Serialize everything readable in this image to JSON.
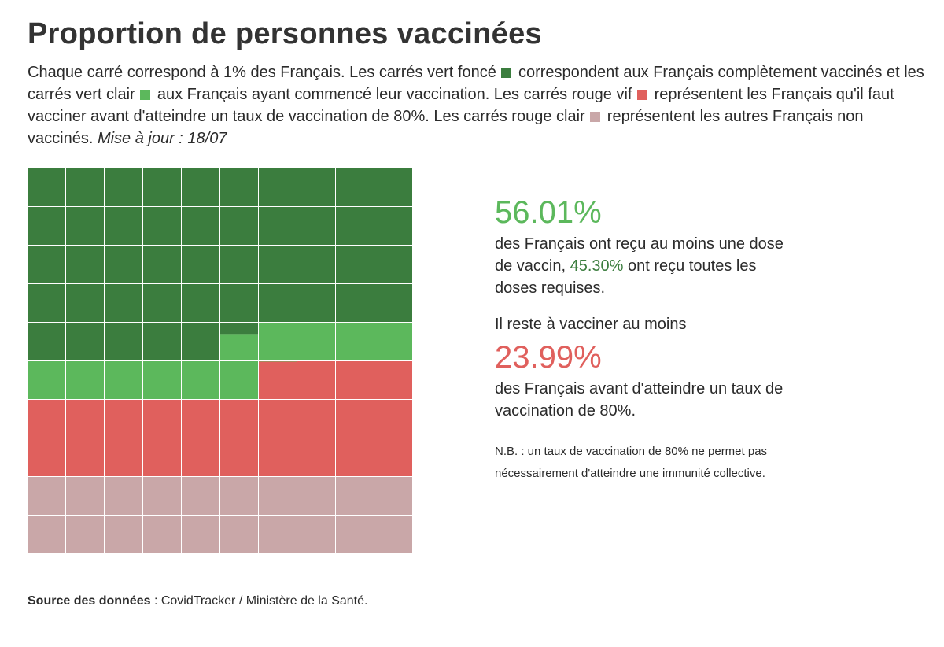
{
  "title": "Proportion de personnes vaccinées",
  "intro": {
    "seg1": "Chaque carré correspond à 1% des Français. Les carrés vert foncé",
    "seg2": "correspondent aux Français complètement vaccinés et les carrés vert clair",
    "seg3": "aux Français ayant commencé leur vaccination. Les carrés rouge vif",
    "seg4": "représentent les Français qu'il faut vacciner avant d'atteindre un taux de vaccination de 80%. Les carrés rouge clair",
    "seg5": "représentent les autres Français non vaccinés.",
    "update": "Mise à jour : 18/07"
  },
  "colors": {
    "dark_green": "#3b7d3e",
    "light_green": "#5cb85c",
    "bright_red": "#e0605d",
    "light_red": "#c9a7a8"
  },
  "chart_data": {
    "type": "waffle",
    "rows": 10,
    "cols": 10,
    "unit": "1% des Français par carré",
    "fill_order": "row-major from top-left",
    "categories": [
      {
        "name": "Complètement vaccinés",
        "value": 45.3,
        "color": "#3b7d3e"
      },
      {
        "name": "Vaccination commencée",
        "value": 10.71,
        "color": "#5cb85c"
      },
      {
        "name": "À vacciner avant 80%",
        "value": 23.99,
        "color": "#e0605d"
      },
      {
        "name": "Autres non vaccinés",
        "value": 20.0,
        "color": "#c9a7a8"
      }
    ]
  },
  "stats": {
    "first_dose_pct": "56.01%",
    "first_dose_text_a": "des Français ont reçu au moins une dose de vaccin,",
    "full_pct": "45.30%",
    "first_dose_text_b": "ont reçu toutes les doses requises.",
    "remaining_label": "Il reste à vacciner au moins",
    "remaining_pct": "23.99%",
    "remaining_text": "des Français avant d'atteindre un taux de vaccination de 80%.",
    "nb": "N.B. : un taux de vaccination de 80% ne permet pas nécessairement d'atteindre une immunité collective."
  },
  "source": {
    "label": "Source des données",
    "text": " : CovidTracker / Ministère de la Santé."
  }
}
